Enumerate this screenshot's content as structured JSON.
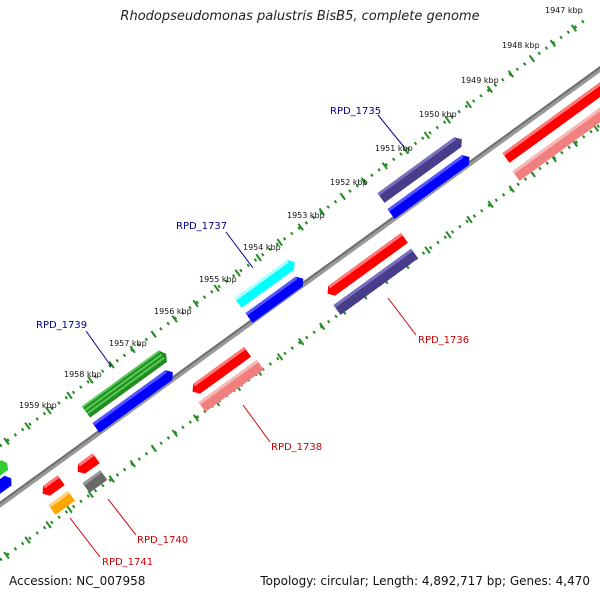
{
  "title": "Rhodopseudomonas palustris BisB5, complete genome",
  "footer": {
    "accession": "Accession: NC_007958",
    "summary": "Topology: circular; Length: 4,892,717 bp; Genes: 4,470"
  },
  "ticks": [
    "1947 kbp",
    "1948 kbp",
    "1949 kbp",
    "1950 kbp",
    "1951 kbp",
    "1952 kbp",
    "1953 kbp",
    "1954 kbp",
    "1955 kbp",
    "1956 kbp",
    "1957 kbp",
    "1958 kbp",
    "1959 kbp"
  ],
  "gene_labels": [
    {
      "text": "RPD_1735",
      "strand": "forward",
      "color": "#00008b"
    },
    {
      "text": "RPD_1737",
      "strand": "forward",
      "color": "#00008b"
    },
    {
      "text": "RPD_1739",
      "strand": "forward",
      "color": "#00008b"
    },
    {
      "text": "RPD_1736",
      "strand": "reverse",
      "color": "#cc0000"
    },
    {
      "text": "RPD_1738",
      "strand": "reverse",
      "color": "#cc0000"
    },
    {
      "text": "RPD_1740",
      "strand": "reverse",
      "color": "#cc0000"
    },
    {
      "text": "RPD_1741",
      "strand": "reverse",
      "color": "#cc0000"
    }
  ],
  "colors": {
    "backbone": "#808080",
    "tick_line": "#228b22",
    "forward_label": "#00008b",
    "reverse_label": "#cc0000",
    "red": "#ff0000",
    "pink": "#f08080",
    "navy": "#483d8b",
    "blue": "#0000ff",
    "cyan": "#00ffff",
    "green": "#32cd32",
    "orange": "#ffa500",
    "gray": "#696969"
  }
}
